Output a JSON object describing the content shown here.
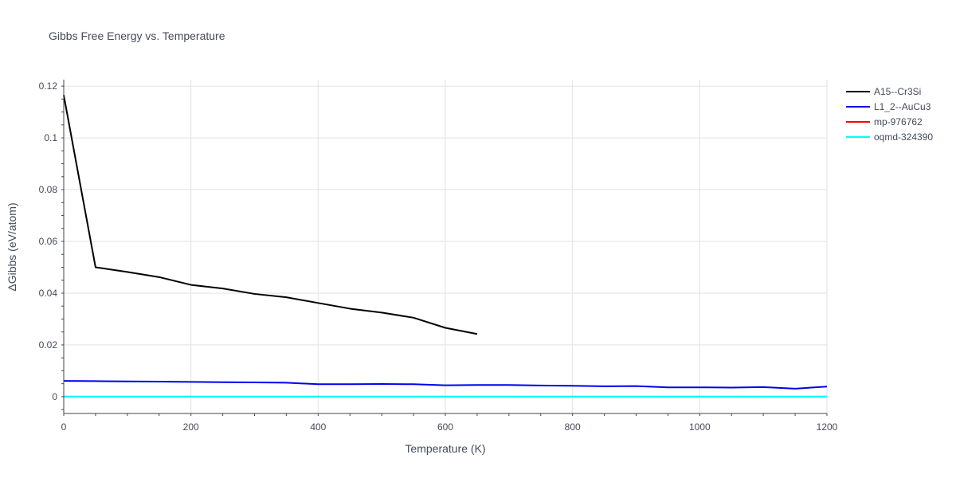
{
  "chart_data": {
    "type": "line",
    "title": "Gibbs Free Energy vs. Temperature",
    "xlabel": "Temperature (K)",
    "ylabel": "ΔGibbs (eV/atom)",
    "xlim": [
      0,
      1200
    ],
    "ylim": [
      -0.0065,
      0.1225
    ],
    "xticks": [
      0,
      200,
      400,
      600,
      800,
      1000,
      1200
    ],
    "yticks": [
      0,
      0.02,
      0.04,
      0.06,
      0.08,
      0.1,
      0.12
    ],
    "ytick_labels": [
      "0",
      "0.02",
      "0.04",
      "0.06",
      "0.08",
      "0.1",
      "0.12"
    ],
    "grid": true,
    "legend_position": "top-right",
    "series": [
      {
        "name": "A15--Cr3Si",
        "color": "#000000",
        "x": [
          0,
          50,
          100,
          150,
          200,
          250,
          300,
          350,
          400,
          450,
          500,
          550,
          600,
          650
        ],
        "y": [
          0.1165,
          0.05,
          0.0482,
          0.0462,
          0.0432,
          0.0418,
          0.0397,
          0.0384,
          0.0362,
          0.034,
          0.0325,
          0.0305,
          0.0266,
          0.0242
        ]
      },
      {
        "name": "L1_2--AuCu3",
        "color": "#0000ee",
        "x": [
          0,
          50,
          100,
          150,
          200,
          250,
          300,
          350,
          400,
          450,
          500,
          550,
          600,
          650,
          700,
          750,
          800,
          850,
          900,
          950,
          1000,
          1050,
          1100,
          1150,
          1200
        ],
        "y": [
          0.0061,
          0.006,
          0.0059,
          0.0058,
          0.0057,
          0.0056,
          0.0055,
          0.0054,
          0.0048,
          0.0048,
          0.0049,
          0.0048,
          0.0044,
          0.0045,
          0.0045,
          0.0043,
          0.0042,
          0.004,
          0.0041,
          0.0036,
          0.0036,
          0.0035,
          0.0037,
          0.0031,
          0.0039
        ]
      },
      {
        "name": "mp-976762",
        "color": "#ff0000",
        "x": [
          0,
          1200
        ],
        "y": [
          0,
          0
        ]
      },
      {
        "name": "oqmd-324390",
        "color": "#00ffff",
        "x": [
          0,
          1200
        ],
        "y": [
          0,
          0
        ]
      }
    ]
  }
}
